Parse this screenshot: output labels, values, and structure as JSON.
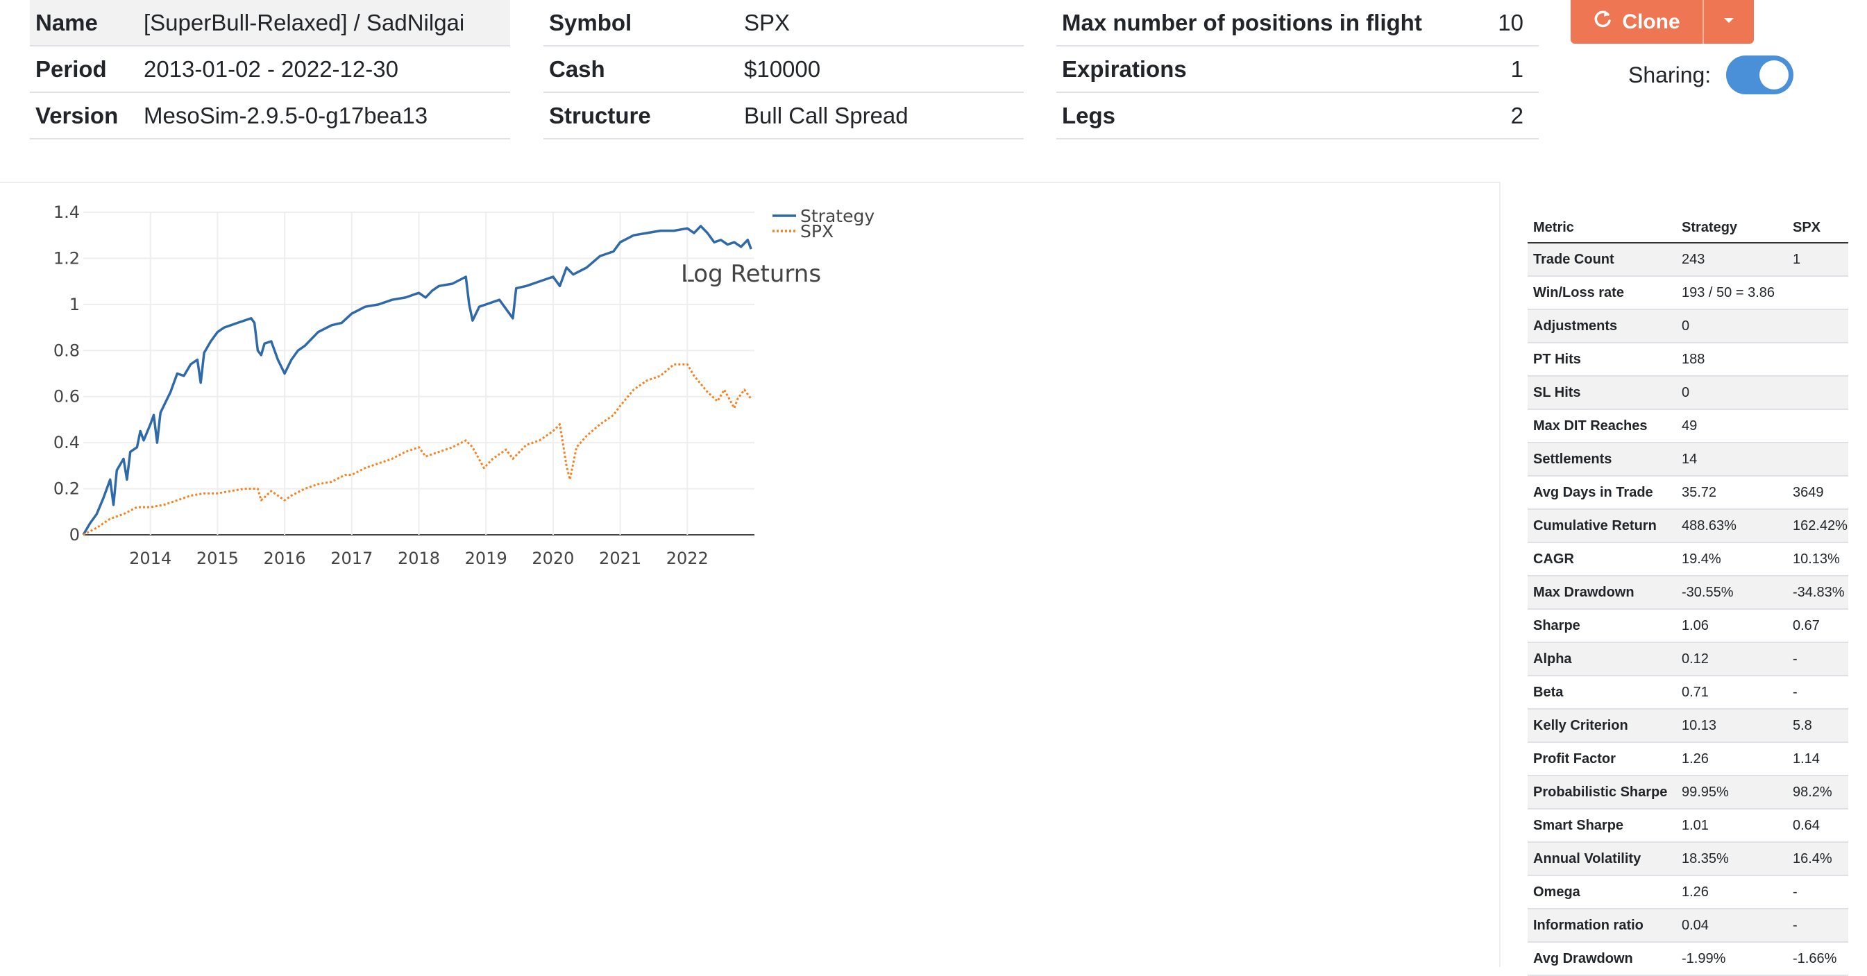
{
  "backtest": {
    "col1": [
      {
        "key": "Name",
        "value": "[SuperBull-Relaxed] / SadNilgai"
      },
      {
        "key": "Period",
        "value": "2013-01-02 - 2022-12-30"
      },
      {
        "key": "Version",
        "value": "MesoSim-2.9.5-0-g17bea13"
      }
    ],
    "col2": [
      {
        "key": "Symbol",
        "value": "SPX"
      },
      {
        "key": "Cash",
        "value": "$10000"
      },
      {
        "key": "Structure",
        "value": "Bull Call Spread"
      }
    ],
    "col3": [
      {
        "key": "Max number of positions in flight",
        "value": "10"
      },
      {
        "key": "Expirations",
        "value": "1"
      },
      {
        "key": "Legs",
        "value": "2"
      }
    ]
  },
  "actions": {
    "clone_label": "Clone",
    "sharing_label": "Sharing:",
    "sharing_enabled": true,
    "accent_color": "#ef7652",
    "toggle_color": "#4a90d9"
  },
  "chart_data": {
    "type": "line",
    "title": "Log Returns",
    "xlabel": "",
    "ylabel": "",
    "ylim": [
      0,
      1.4
    ],
    "y_ticks": [
      "0",
      "0.2",
      "0.4",
      "0.6",
      "0.8",
      "1",
      "1.2",
      "1.4"
    ],
    "x_ticks": [
      "2014",
      "2015",
      "2016",
      "2017",
      "2018",
      "2019",
      "2020",
      "2021",
      "2022"
    ],
    "legend_position": "top-right",
    "grid": true,
    "series": [
      {
        "name": "Strategy",
        "color": "#2f69a8",
        "style": "solid",
        "x": [
          2013.0,
          2013.1,
          2013.2,
          2013.3,
          2013.4,
          2013.45,
          2013.5,
          2013.6,
          2013.65,
          2013.7,
          2013.8,
          2013.85,
          2013.9,
          2014.0,
          2014.05,
          2014.1,
          2014.15,
          2014.2,
          2014.3,
          2014.35,
          2014.4,
          2014.5,
          2014.6,
          2014.7,
          2014.75,
          2014.8,
          2014.9,
          2015.0,
          2015.1,
          2015.2,
          2015.3,
          2015.4,
          2015.5,
          2015.55,
          2015.6,
          2015.65,
          2015.7,
          2015.8,
          2015.9,
          2016.0,
          2016.1,
          2016.2,
          2016.3,
          2016.5,
          2016.7,
          2016.85,
          2017.0,
          2017.2,
          2017.4,
          2017.6,
          2017.8,
          2018.0,
          2018.1,
          2018.2,
          2018.3,
          2018.5,
          2018.7,
          2018.75,
          2018.8,
          2018.9,
          2019.0,
          2019.2,
          2019.4,
          2019.45,
          2019.6,
          2019.8,
          2020.0,
          2020.1,
          2020.2,
          2020.3,
          2020.5,
          2020.7,
          2020.9,
          2021.0,
          2021.2,
          2021.4,
          2021.6,
          2021.8,
          2022.0,
          2022.1,
          2022.2,
          2022.3,
          2022.4,
          2022.5,
          2022.6,
          2022.7,
          2022.8,
          2022.9,
          2022.95
        ],
        "values": [
          0.0,
          0.05,
          0.09,
          0.16,
          0.24,
          0.13,
          0.28,
          0.33,
          0.24,
          0.36,
          0.38,
          0.45,
          0.41,
          0.48,
          0.52,
          0.4,
          0.53,
          0.56,
          0.62,
          0.66,
          0.7,
          0.69,
          0.74,
          0.76,
          0.66,
          0.79,
          0.84,
          0.88,
          0.9,
          0.91,
          0.92,
          0.93,
          0.94,
          0.92,
          0.8,
          0.78,
          0.83,
          0.84,
          0.76,
          0.7,
          0.76,
          0.8,
          0.82,
          0.88,
          0.91,
          0.92,
          0.96,
          0.99,
          1.0,
          1.02,
          1.03,
          1.05,
          1.03,
          1.06,
          1.08,
          1.09,
          1.12,
          1.0,
          0.93,
          0.99,
          1.0,
          1.02,
          0.94,
          1.07,
          1.08,
          1.1,
          1.12,
          1.08,
          1.16,
          1.13,
          1.16,
          1.21,
          1.23,
          1.27,
          1.3,
          1.31,
          1.32,
          1.32,
          1.33,
          1.31,
          1.34,
          1.31,
          1.27,
          1.28,
          1.26,
          1.27,
          1.25,
          1.28,
          1.24
        ]
      },
      {
        "name": "SPX",
        "color": "#f5821f",
        "style": "dotted",
        "x": [
          2013.0,
          2013.2,
          2013.4,
          2013.6,
          2013.8,
          2014.0,
          2014.2,
          2014.4,
          2014.6,
          2014.8,
          2015.0,
          2015.2,
          2015.4,
          2015.6,
          2015.65,
          2015.8,
          2016.0,
          2016.1,
          2016.3,
          2016.5,
          2016.7,
          2016.9,
          2017.0,
          2017.2,
          2017.4,
          2017.6,
          2017.8,
          2018.0,
          2018.1,
          2018.3,
          2018.5,
          2018.7,
          2018.8,
          2018.97,
          2019.1,
          2019.3,
          2019.4,
          2019.6,
          2019.8,
          2020.0,
          2020.1,
          2020.2,
          2020.25,
          2020.35,
          2020.5,
          2020.7,
          2020.9,
          2021.0,
          2021.2,
          2021.4,
          2021.6,
          2021.8,
          2022.0,
          2022.1,
          2022.3,
          2022.45,
          2022.55,
          2022.7,
          2022.75,
          2022.85,
          2022.95
        ],
        "values": [
          0.0,
          0.03,
          0.07,
          0.09,
          0.12,
          0.12,
          0.13,
          0.15,
          0.17,
          0.18,
          0.18,
          0.19,
          0.2,
          0.2,
          0.15,
          0.19,
          0.15,
          0.17,
          0.2,
          0.22,
          0.23,
          0.26,
          0.26,
          0.29,
          0.31,
          0.33,
          0.36,
          0.38,
          0.34,
          0.36,
          0.38,
          0.41,
          0.38,
          0.29,
          0.33,
          0.37,
          0.33,
          0.39,
          0.41,
          0.45,
          0.48,
          0.3,
          0.24,
          0.38,
          0.43,
          0.48,
          0.52,
          0.56,
          0.63,
          0.67,
          0.69,
          0.74,
          0.74,
          0.69,
          0.62,
          0.58,
          0.63,
          0.55,
          0.59,
          0.63,
          0.59
        ]
      }
    ]
  },
  "metrics": {
    "headers": [
      "Metric",
      "Strategy",
      "SPX"
    ],
    "rows": [
      [
        "Trade Count",
        "243",
        "1"
      ],
      [
        "Win/Loss rate",
        "193 / 50 = 3.86",
        ""
      ],
      [
        "Adjustments",
        "0",
        ""
      ],
      [
        "PT Hits",
        "188",
        ""
      ],
      [
        "SL Hits",
        "0",
        ""
      ],
      [
        "Max DIT Reaches",
        "49",
        ""
      ],
      [
        "Settlements",
        "14",
        ""
      ],
      [
        "Avg Days in Trade",
        "35.72",
        "3649"
      ],
      [
        "Cumulative Return",
        "488.63%",
        "162.42%"
      ],
      [
        "CAGR",
        "19.4%",
        "10.13%"
      ],
      [
        "Max Drawdown",
        "-30.55%",
        "-34.83%"
      ],
      [
        "Sharpe",
        "1.06",
        "0.67"
      ],
      [
        "Alpha",
        "0.12",
        "-"
      ],
      [
        "Beta",
        "0.71",
        "-"
      ],
      [
        "Kelly Criterion",
        "10.13",
        "5.8"
      ],
      [
        "Profit Factor",
        "1.26",
        "1.14"
      ],
      [
        "Probabilistic Sharpe",
        "99.95%",
        "98.2%"
      ],
      [
        "Smart Sharpe",
        "1.01",
        "0.64"
      ],
      [
        "Annual Volatility",
        "18.35%",
        "16.4%"
      ],
      [
        "Omega",
        "1.26",
        "-"
      ],
      [
        "Information ratio",
        "0.04",
        "-"
      ],
      [
        "Avg Drawdown",
        "-1.99%",
        "-1.66%"
      ]
    ]
  }
}
